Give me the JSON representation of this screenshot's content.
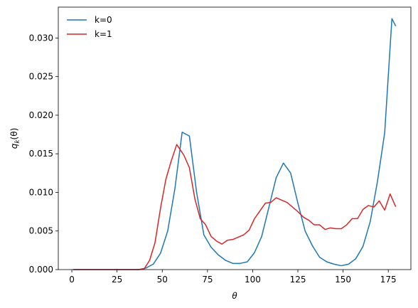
{
  "chart_data": {
    "type": "line",
    "xlabel": "θ",
    "ylabel": "q_k(θ)",
    "xlim": [
      -7.5,
      187.5
    ],
    "ylim": [
      0,
      0.034
    ],
    "xticks": [
      "0",
      "25",
      "50",
      "75",
      "100",
      "125",
      "150",
      "175"
    ],
    "yticks": [
      "0.000",
      "0.005",
      "0.010",
      "0.015",
      "0.020",
      "0.025",
      "0.030"
    ],
    "grid": false,
    "legend_placement": "top-left",
    "series": [
      {
        "name": "k=0",
        "color": "#1f77b4",
        "x": [
          1,
          5,
          9,
          13,
          17,
          21,
          25,
          29,
          33,
          37,
          41,
          45,
          49,
          53,
          57,
          61,
          65,
          69,
          73,
          77,
          81,
          85,
          89,
          93,
          97,
          101,
          105,
          109,
          113,
          117,
          121,
          125,
          129,
          133,
          137,
          141,
          145,
          149,
          153,
          157,
          161,
          165,
          169,
          173,
          177,
          179
        ],
        "y": [
          0,
          0,
          0,
          0,
          0,
          0,
          0,
          0,
          0,
          0,
          0.0002,
          0.0007,
          0.0021,
          0.005,
          0.0105,
          0.0178,
          0.0173,
          0.01,
          0.0045,
          0.0029,
          0.0019,
          0.0012,
          0.0008,
          0.0008,
          0.001,
          0.0022,
          0.0043,
          0.0081,
          0.0119,
          0.0138,
          0.0125,
          0.0086,
          0.005,
          0.0031,
          0.0016,
          0.001,
          0.0007,
          0.0005,
          0.0007,
          0.0014,
          0.003,
          0.0062,
          0.0114,
          0.0177,
          0.0325,
          0.0316
        ]
      },
      {
        "name": "k=1",
        "color": "#d62728",
        "x": [
          1,
          5,
          9,
          13,
          17,
          21,
          25,
          29,
          33,
          37,
          40,
          43,
          46,
          49,
          52,
          55,
          58,
          62,
          65,
          68,
          71,
          74,
          77,
          80,
          83,
          86,
          89,
          92,
          95,
          98,
          101,
          104,
          107,
          110,
          113,
          116,
          119,
          122,
          125,
          128,
          131,
          134,
          137,
          140,
          143,
          146,
          149,
          152,
          155,
          158,
          161,
          164,
          167,
          170,
          173,
          176,
          179
        ],
        "y": [
          0,
          0,
          0,
          0,
          0,
          0,
          0,
          0,
          0,
          0,
          0.0001,
          0.0012,
          0.0035,
          0.0079,
          0.0117,
          0.0141,
          0.0162,
          0.0148,
          0.0132,
          0.0092,
          0.0066,
          0.0058,
          0.0043,
          0.0037,
          0.0033,
          0.0038,
          0.0039,
          0.0042,
          0.0045,
          0.0051,
          0.0066,
          0.0076,
          0.0086,
          0.0087,
          0.0093,
          0.009,
          0.0087,
          0.0081,
          0.0075,
          0.0068,
          0.0064,
          0.0058,
          0.0058,
          0.0052,
          0.0054,
          0.0053,
          0.0053,
          0.0058,
          0.0066,
          0.0066,
          0.0078,
          0.0083,
          0.0081,
          0.0089,
          0.0077,
          0.0098,
          0.0082
        ]
      }
    ]
  }
}
